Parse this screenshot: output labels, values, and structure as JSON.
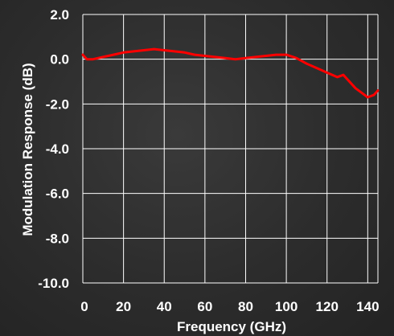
{
  "chart_data": {
    "type": "line",
    "title": "",
    "xlabel": "Frequency (GHz)",
    "ylabel": "Modulation Response (dB)",
    "xlim": [
      0,
      145
    ],
    "ylim": [
      -10.0,
      2.0
    ],
    "xticks": [
      "0",
      "20",
      "40",
      "60",
      "80",
      "100",
      "120",
      "140"
    ],
    "yticks": [
      "2.0",
      "0.0",
      "-2.0",
      "-4.0",
      "-6.0",
      "-8.0",
      "-10.0"
    ],
    "grid": true,
    "legend": "none",
    "line_color": "#ff0000",
    "series": [
      {
        "x": [
          0,
          2,
          5,
          10,
          15,
          20,
          25,
          30,
          35,
          40,
          45,
          50,
          55,
          60,
          65,
          70,
          75,
          80,
          85,
          90,
          95,
          100,
          105,
          110,
          115,
          120,
          125,
          128,
          131,
          134,
          137,
          140,
          143,
          145
        ],
        "y": [
          0.2,
          0.0,
          0.0,
          0.1,
          0.2,
          0.3,
          0.35,
          0.4,
          0.45,
          0.4,
          0.35,
          0.3,
          0.2,
          0.15,
          0.1,
          0.05,
          0.0,
          0.05,
          0.1,
          0.15,
          0.2,
          0.2,
          0.05,
          -0.2,
          -0.4,
          -0.6,
          -0.8,
          -0.7,
          -1.0,
          -1.3,
          -1.5,
          -1.7,
          -1.6,
          -1.4
        ]
      }
    ]
  }
}
